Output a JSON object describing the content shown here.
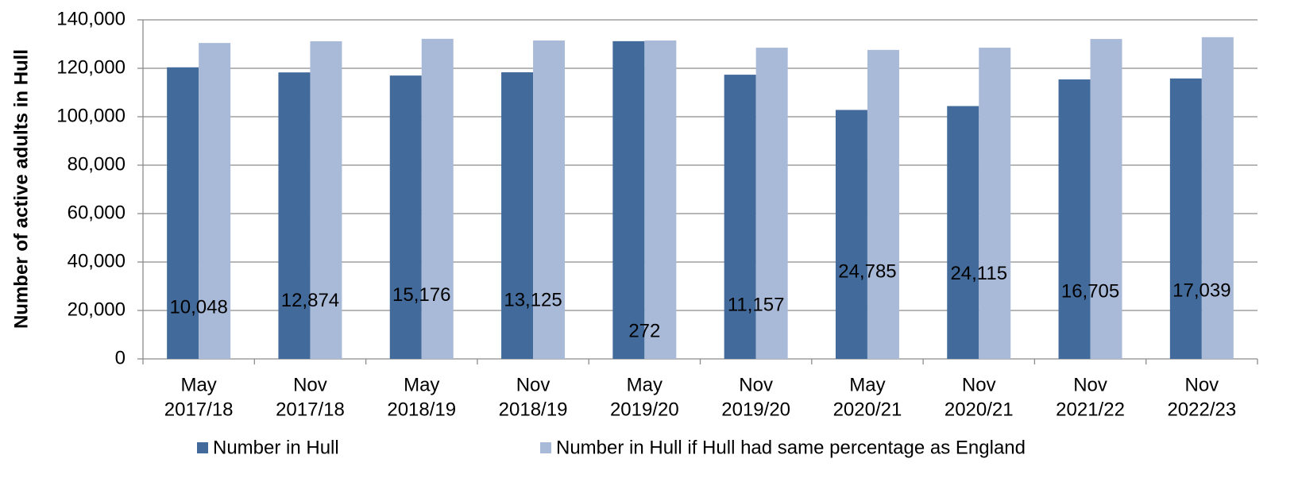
{
  "chart_data": {
    "type": "bar",
    "y_label": "Number of active adults in Hull",
    "categories": [
      [
        "May",
        "2017/18"
      ],
      [
        "Nov",
        "2017/18"
      ],
      [
        "May",
        "2018/19"
      ],
      [
        "Nov",
        "2018/19"
      ],
      [
        "May",
        "2019/20"
      ],
      [
        "Nov",
        "2019/20"
      ],
      [
        "May",
        "2020/21"
      ],
      [
        "Nov",
        "2020/21"
      ],
      [
        "Nov",
        "2021/22"
      ],
      [
        "Nov",
        "2022/23"
      ]
    ],
    "series": [
      {
        "name": "Number in Hull",
        "color": "#426b9b",
        "values": [
          120400,
          118300,
          117000,
          118350,
          131200,
          117350,
          102800,
          104400,
          115400,
          115800
        ]
      },
      {
        "name": "Number in Hull if Hull had same percentage as England",
        "color": "#a9bad9",
        "values": [
          130448,
          131174,
          132176,
          131475,
          131472,
          128507,
          127585,
          128515,
          132105,
          132839
        ]
      }
    ],
    "annotations": [
      {
        "value": 10048,
        "label": "10,048"
      },
      {
        "value": 12874,
        "label": "12,874"
      },
      {
        "value": 15176,
        "label": "15,176"
      },
      {
        "value": 13125,
        "label": "13,125"
      },
      {
        "value": 272,
        "label": "272"
      },
      {
        "value": 11157,
        "label": "11,157"
      },
      {
        "value": 24785,
        "label": "24,785"
      },
      {
        "value": 24115,
        "label": "24,115"
      },
      {
        "value": 16705,
        "label": "16,705"
      },
      {
        "value": 17039,
        "label": "17,039"
      }
    ],
    "ylim": [
      0,
      140000
    ],
    "yticks": [
      0,
      {
        "value": 20000,
        "label": "20,000"
      },
      {
        "value": 40000,
        "label": "40,000"
      },
      {
        "value": 60000,
        "label": "60,000"
      },
      {
        "value": 80000,
        "label": "80,000"
      },
      {
        "value": 100000,
        "label": "100,000"
      },
      {
        "value": 120000,
        "label": "120,000"
      },
      {
        "value": 140000,
        "label": "140,000"
      }
    ],
    "grid": true,
    "legend": "bottom"
  }
}
